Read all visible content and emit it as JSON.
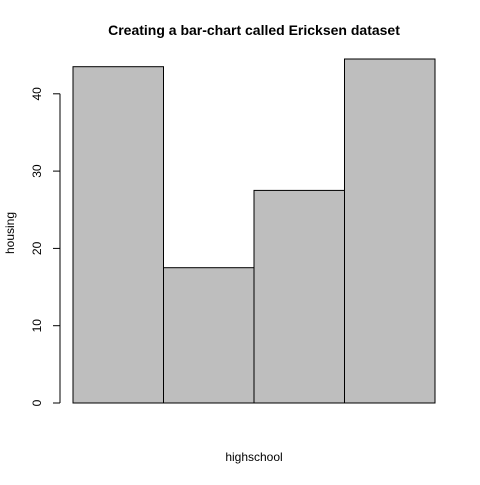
{
  "chart_data": {
    "type": "bar",
    "title": "Creating a bar-chart called Ericksen dataset",
    "xlabel": "highschool",
    "ylabel": "housing",
    "categories": [
      "",
      "",
      "",
      ""
    ],
    "values": [
      43.5,
      17.5,
      27.5,
      44.5
    ],
    "ylim": [
      0,
      44.5
    ],
    "yticks": [
      0,
      10,
      20,
      30,
      40
    ],
    "grid": false,
    "legend": "none",
    "bar_fill": "#bebebe",
    "bar_stroke": "#000000"
  }
}
